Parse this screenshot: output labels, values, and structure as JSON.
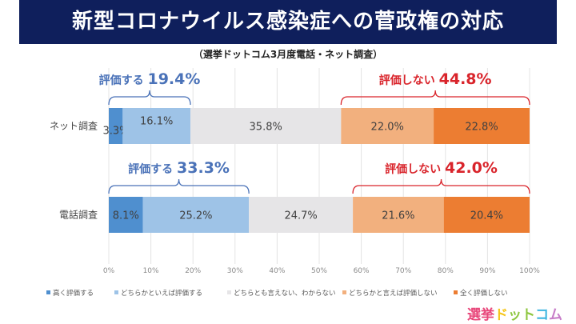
{
  "header": {
    "title": "新型コロナウイルス感染症への菅政権の対応",
    "subtitle": "（選挙ドットコム3月度電話・ネット調査）"
  },
  "logo": {
    "text": "選挙ドットコム",
    "chars": [
      {
        "ch": "選",
        "color": "#e8467a"
      },
      {
        "ch": "挙",
        "color": "#e8467a"
      },
      {
        "ch": "ド",
        "color": "#f5c518"
      },
      {
        "ch": "ッ",
        "color": "#8dc63f"
      },
      {
        "ch": "ト",
        "color": "#8dc63f"
      },
      {
        "ch": "コ",
        "color": "#3fb6e0"
      },
      {
        "ch": "ム",
        "color": "#c77dc8"
      }
    ]
  },
  "chart_data": {
    "type": "bar",
    "orientation": "horizontal",
    "stacked": "100%",
    "title": "新型コロナウイルス感染症への菅政権の対応",
    "subtitle": "（選挙ドットコム3月度電話・ネット調査）",
    "categories": [
      "ネット調査",
      "電話調査"
    ],
    "series": [
      {
        "name": "高く評価する",
        "color": "#4f8fcf",
        "values": [
          3.3,
          8.1
        ],
        "labels": [
          "3.3%",
          "8.1%"
        ]
      },
      {
        "name": "どちらかといえば評価する",
        "color": "#9ec3e7",
        "values": [
          16.1,
          25.2
        ],
        "labels": [
          "16.1%",
          "25.2%"
        ]
      },
      {
        "name": "どちらとも言えない、わからない",
        "color": "#e6e5e7",
        "values": [
          35.8,
          24.7
        ],
        "labels": [
          "35.8%",
          "24.7%"
        ]
      },
      {
        "name": "どちらかと言えば評価しない",
        "color": "#f2b07e",
        "values": [
          22.0,
          21.6
        ],
        "labels": [
          "22.0%",
          "21.6%"
        ]
      },
      {
        "name": "全く評価しない",
        "color": "#ec7d32",
        "values": [
          22.8,
          20.4
        ],
        "labels": [
          "22.8%",
          "20.4%"
        ]
      }
    ],
    "xlim": [
      0,
      100
    ],
    "xticks": [
      "0%",
      "10%",
      "20%",
      "30%",
      "40%",
      "50%",
      "60%",
      "70%",
      "80%",
      "90%",
      "100%"
    ],
    "grid": true,
    "legend": "bottom",
    "annotations": [
      {
        "category": "ネット調査",
        "text": "評価する",
        "value": "19.4%",
        "range": [
          0,
          19.4
        ],
        "color": "#4a72b8"
      },
      {
        "category": "ネット調査",
        "text": "評価しない",
        "value": "44.8%",
        "range": [
          55.2,
          100
        ],
        "color": "#d9242b"
      },
      {
        "category": "電話調査",
        "text": "評価する",
        "value": "33.3%",
        "range": [
          0,
          33.3
        ],
        "color": "#4a72b8"
      },
      {
        "category": "電話調査",
        "text": "評価しない",
        "value": "42.0%",
        "range": [
          58.0,
          100
        ],
        "color": "#d9242b"
      }
    ]
  }
}
